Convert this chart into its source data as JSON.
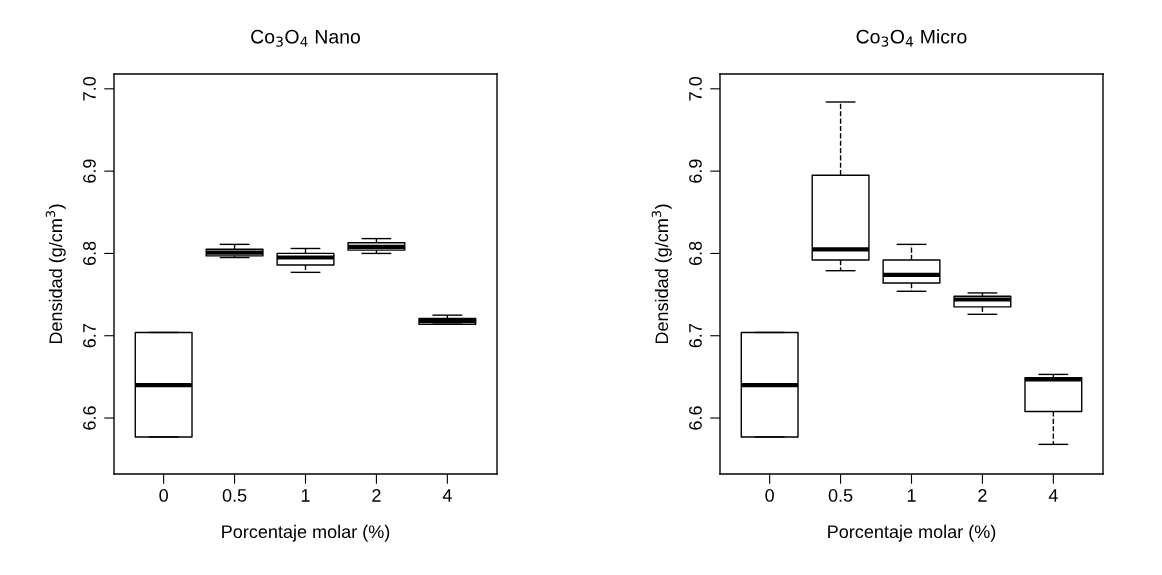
{
  "chart_data": [
    {
      "type": "box",
      "title": "Co$_{3}$O$_{4}$ Nano",
      "xlabel": "Porcentaje molar (%)",
      "ylabel": "Densidad (g/cm$^{3}$)",
      "categories": [
        "0",
        "0.5",
        "1",
        "2",
        "4"
      ],
      "boxes": [
        {
          "low": 6.577,
          "q1": 6.577,
          "median": 6.64,
          "q3": 6.704,
          "high": 6.704
        },
        {
          "low": 6.795,
          "q1": 6.797,
          "median": 6.801,
          "q3": 6.805,
          "high": 6.811
        },
        {
          "low": 6.777,
          "q1": 6.786,
          "median": 6.795,
          "q3": 6.8,
          "high": 6.806
        },
        {
          "low": 6.8,
          "q1": 6.804,
          "median": 6.808,
          "q3": 6.813,
          "high": 6.818
        },
        {
          "low": 6.714,
          "q1": 6.714,
          "median": 6.718,
          "q3": 6.721,
          "high": 6.725
        }
      ],
      "ylim": [
        6.532,
        7.018
      ],
      "yticks": [
        6.6,
        6.7,
        6.8,
        6.9,
        {
          "value": 7,
          "label": "7.0"
        }
      ],
      "grid": false,
      "line_style": "dashed"
    },
    {
      "type": "box",
      "title": "Co$_{3}$O$_{4}$ Micro",
      "xlabel": "Porcentaje molar (%)",
      "ylabel": "Densidad (g/cm$^{3}$)",
      "categories": [
        "0",
        "0.5",
        "1",
        "2",
        "4"
      ],
      "boxes": [
        {
          "low": 6.577,
          "q1": 6.577,
          "median": 6.64,
          "q3": 6.704,
          "high": 6.704
        },
        {
          "low": 6.779,
          "q1": 6.792,
          "median": 6.805,
          "q3": 6.895,
          "high": 6.984
        },
        {
          "low": 6.754,
          "q1": 6.764,
          "median": 6.774,
          "q3": 6.792,
          "high": 6.811
        },
        {
          "low": 6.726,
          "q1": 6.735,
          "median": 6.744,
          "q3": 6.748,
          "high": 6.752
        },
        {
          "low": 6.568,
          "q1": 6.608,
          "median": 6.647,
          "q3": 6.649,
          "high": 6.653
        }
      ],
      "ylim": [
        6.532,
        7.018
      ],
      "yticks": [
        6.6,
        6.7,
        6.8,
        6.9,
        {
          "value": 7,
          "label": "7.0"
        }
      ],
      "grid": false,
      "line_style": "dashed"
    }
  ]
}
